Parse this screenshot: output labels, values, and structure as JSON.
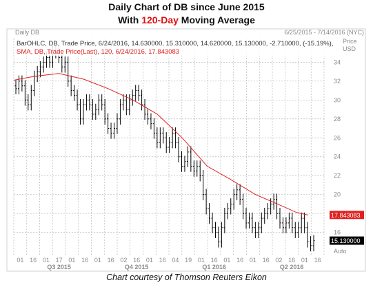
{
  "title_line1": "Daily Chart of DB since June 2015",
  "title_line2_pre": "With ",
  "title_line2_highlight": "120-Day",
  "title_line2_post": " Moving Average",
  "caption": "Chart courtesy of Thomson Reuters Eikon",
  "header": {
    "left": "Daily DB",
    "right": "6/25/2015 - 7/14/2016 (NYC)",
    "ohlc_line": "BarOHLC, DB, Trade Price, 6/24/2016, 14.630000, 15.310000, 14.620000, 15.130000, -2.710000, (-15.19%),",
    "sma_line": "SMA, DB, Trade Price(Last),  120, 6/24/2016, 17.843083",
    "price_label": "Price",
    "currency_label": "USD",
    "auto_label": "Auto"
  },
  "colors": {
    "bars": "#000000",
    "sma": "#e02020",
    "grid": "#b8b8b8",
    "highlight_title": "#e01010",
    "sma_badge": "#e02020",
    "last_badge": "#000000"
  },
  "chart_data": {
    "type": "line",
    "series": [
      {
        "name": "BarOHLC, DB, Trade Price",
        "close": [
          31.2,
          32.0,
          31.5,
          30.0,
          29.5,
          31.0,
          32.5,
          33.0,
          33.5,
          34.0,
          34.5,
          34.0,
          35.2,
          35.0,
          34.5,
          33.5,
          34.0,
          32.0,
          31.0,
          30.5,
          29.5,
          28.0,
          29.5,
          30.0,
          29.5,
          28.5,
          29.0,
          30.0,
          29.5,
          28.0,
          27.0,
          26.5,
          27.0,
          28.0,
          29.5,
          30.0,
          29.0,
          30.0,
          30.5,
          31.0,
          30.5,
          29.5,
          28.5,
          28.0,
          27.5,
          26.5,
          25.5,
          26.5,
          26.0,
          25.0,
          25.5,
          26.5,
          25.5,
          24.0,
          23.0,
          23.5,
          24.5,
          23.0,
          22.5,
          23.0,
          22.0,
          20.0,
          18.5,
          17.5,
          16.5,
          16.0,
          15.0,
          16.5,
          18.0,
          18.5,
          19.0,
          20.0,
          20.5,
          19.5,
          18.0,
          17.0,
          17.5,
          16.5,
          16.0,
          16.5,
          17.5,
          18.0,
          18.5,
          19.0,
          19.5,
          18.0,
          17.0,
          16.5,
          17.0,
          17.5,
          16.5,
          16.0,
          16.5,
          17.5,
          16.5,
          15.0,
          14.6,
          15.13
        ]
      },
      {
        "name": "SMA, DB, Trade Price(Last), 120",
        "x": [
          "2015-06-25",
          "2015-07-20",
          "2015-08-20",
          "2015-09-20",
          "2015-10-20",
          "2015-11-20",
          "2015-12-20",
          "2016-01-20",
          "2016-02-20",
          "2016-03-20",
          "2016-04-20",
          "2016-05-20",
          "2016-06-10",
          "2016-06-24"
        ],
        "values": [
          32.1,
          32.5,
          32.8,
          32.2,
          31.2,
          30.0,
          28.5,
          26.0,
          23.0,
          21.6,
          20.0,
          18.9,
          18.1,
          17.84
        ]
      }
    ],
    "last_close": "15.130000",
    "last_sma": "17.843083",
    "ylim": [
      13.5,
      36.5
    ],
    "y_ticks": [
      "34",
      "32",
      "30",
      "28",
      "26",
      "24",
      "22",
      "20",
      "18",
      "16"
    ],
    "x_day_labels": [
      "01",
      "16",
      "01",
      "17",
      "01",
      "16",
      "01",
      "16",
      "02",
      "16",
      "01",
      "16",
      "04",
      "19",
      "01",
      "16",
      "01",
      "16",
      "01",
      "16",
      "02",
      "16",
      "01",
      "16"
    ],
    "x_quarter_labels": [
      "Q3 2015",
      "Q4 2015",
      "Q1 2016",
      "Q2 2016"
    ],
    "grid": true
  }
}
